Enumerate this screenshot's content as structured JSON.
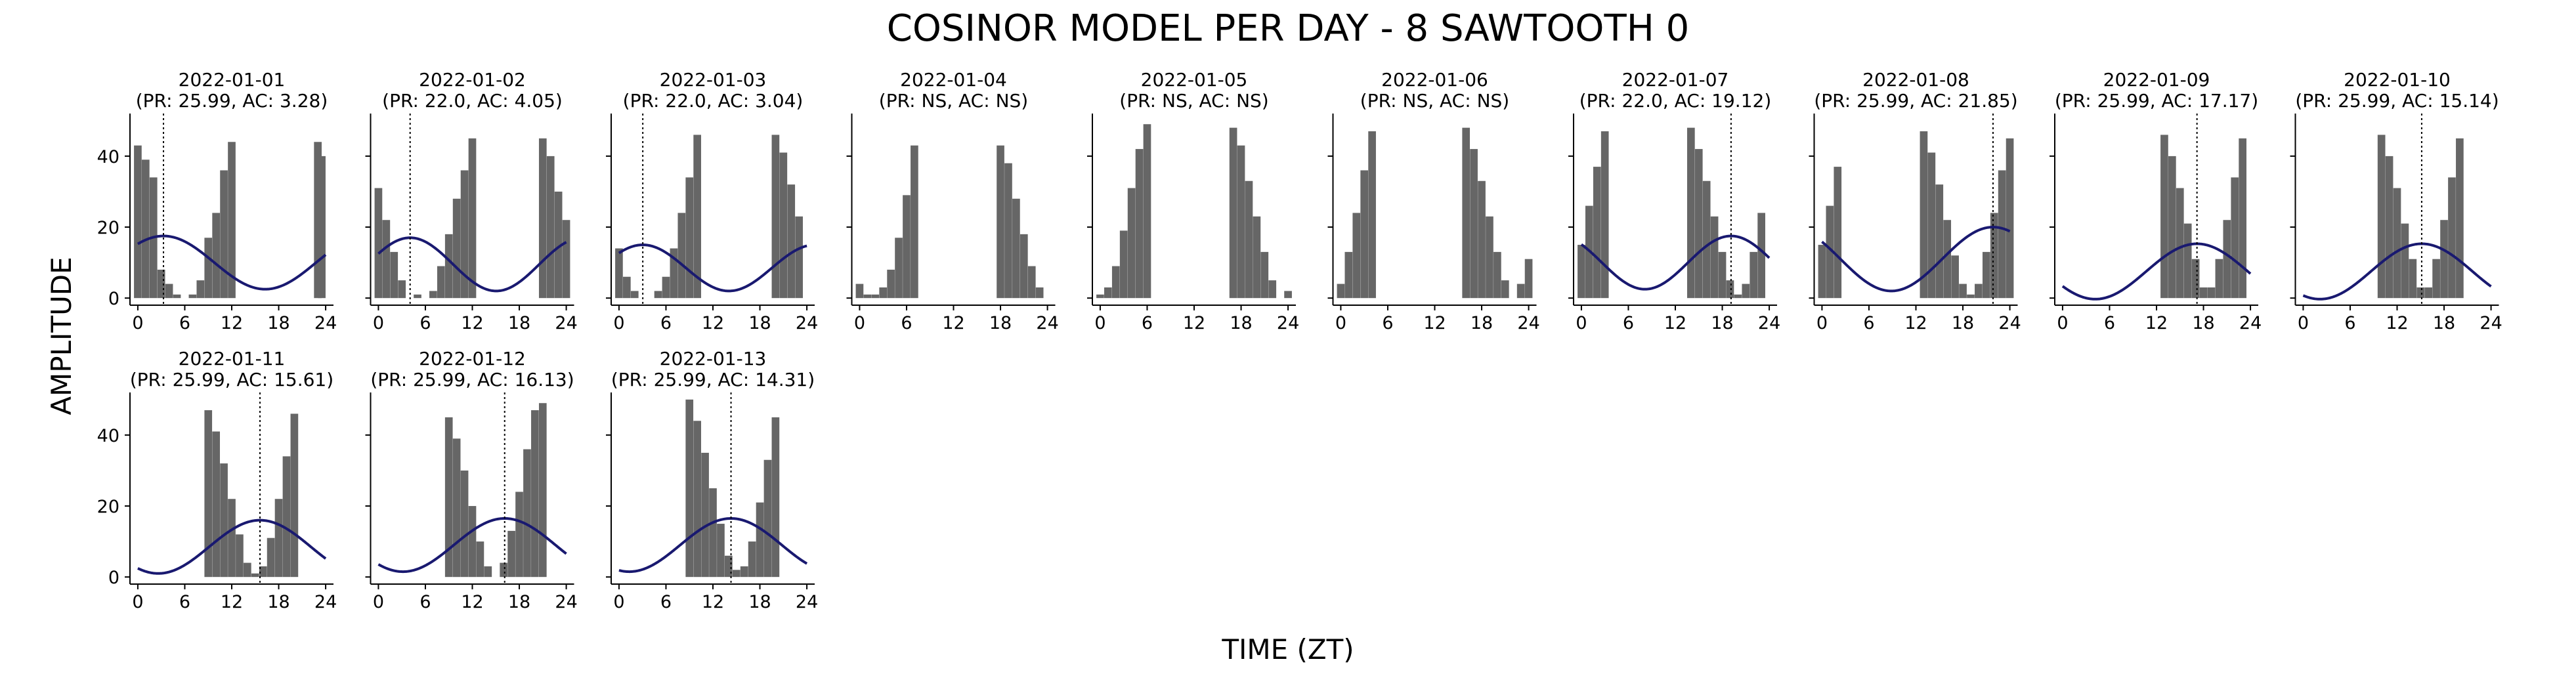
{
  "figure": {
    "title": "COSINOR MODEL PER DAY - 8 SAWTOOTH 0",
    "xlabel": "TIME (ZT)",
    "ylabel": "AMPLITUDE",
    "colors": {
      "bar": "#666666",
      "curve": "#191970",
      "axis": "#000000",
      "acrophase_line": "#000000"
    }
  },
  "chart_data": [
    {
      "type": "bar",
      "date": "2022-01-01",
      "subtitle": "(PR: 25.99, AC: 3.28)",
      "xlim": [
        -1,
        25
      ],
      "ylim": [
        -2,
        52
      ],
      "xticks": [
        0,
        6,
        12,
        18,
        24
      ],
      "yticks": [
        0,
        20,
        40
      ],
      "bins": [
        {
          "x": 0,
          "y": 43
        },
        {
          "x": 1,
          "y": 39
        },
        {
          "x": 2,
          "y": 34
        },
        {
          "x": 3,
          "y": 8
        },
        {
          "x": 4,
          "y": 4
        },
        {
          "x": 5,
          "y": 1
        },
        {
          "x": 7,
          "y": 1
        },
        {
          "x": 8,
          "y": 5
        },
        {
          "x": 9,
          "y": 17
        },
        {
          "x": 10,
          "y": 24
        },
        {
          "x": 11,
          "y": 36
        },
        {
          "x": 12,
          "y": 44
        },
        {
          "x": 23,
          "y": 44
        },
        {
          "x": 23.5,
          "y": 40
        }
      ],
      "cosinor": {
        "mesor": 10.0,
        "amplitude": 7.5,
        "acrophase": 3.28,
        "period": 25.99
      },
      "acrophase_line": 3.28
    },
    {
      "type": "bar",
      "date": "2022-01-02",
      "subtitle": "(PR: 22.0, AC: 4.05)",
      "xlim": [
        -1,
        25
      ],
      "ylim": [
        -2,
        52
      ],
      "xticks": [
        0,
        6,
        12,
        18,
        24
      ],
      "yticks": [
        0,
        20,
        40
      ],
      "bins": [
        {
          "x": 0,
          "y": 31
        },
        {
          "x": 1,
          "y": 22
        },
        {
          "x": 2,
          "y": 13
        },
        {
          "x": 3,
          "y": 5
        },
        {
          "x": 5,
          "y": 1
        },
        {
          "x": 7,
          "y": 2
        },
        {
          "x": 8,
          "y": 9
        },
        {
          "x": 9,
          "y": 18
        },
        {
          "x": 10,
          "y": 28
        },
        {
          "x": 11,
          "y": 36
        },
        {
          "x": 12,
          "y": 45
        },
        {
          "x": 21,
          "y": 45
        },
        {
          "x": 22,
          "y": 40
        },
        {
          "x": 23,
          "y": 30
        },
        {
          "x": 24,
          "y": 22
        }
      ],
      "cosinor": {
        "mesor": 9.5,
        "amplitude": 7.5,
        "acrophase": 4.05,
        "period": 22.0
      },
      "acrophase_line": 4.05
    },
    {
      "type": "bar",
      "date": "2022-01-03",
      "subtitle": "(PR: 22.0, AC: 3.04)",
      "xlim": [
        -1,
        25
      ],
      "ylim": [
        -2,
        52
      ],
      "xticks": [
        0,
        6,
        12,
        18,
        24
      ],
      "yticks": [
        0,
        20,
        40
      ],
      "bins": [
        {
          "x": 0,
          "y": 14
        },
        {
          "x": 1,
          "y": 6
        },
        {
          "x": 2,
          "y": 2
        },
        {
          "x": 5,
          "y": 2
        },
        {
          "x": 6,
          "y": 6
        },
        {
          "x": 7,
          "y": 14
        },
        {
          "x": 8,
          "y": 24
        },
        {
          "x": 9,
          "y": 34
        },
        {
          "x": 10,
          "y": 46
        },
        {
          "x": 20,
          "y": 46
        },
        {
          "x": 21,
          "y": 41
        },
        {
          "x": 22,
          "y": 32
        },
        {
          "x": 23,
          "y": 23
        }
      ],
      "cosinor": {
        "mesor": 8.5,
        "amplitude": 6.5,
        "acrophase": 3.04,
        "period": 22.0
      },
      "acrophase_line": 3.04
    },
    {
      "type": "bar",
      "date": "2022-01-04",
      "subtitle": "(PR: NS, AC: NS)",
      "xlim": [
        -1,
        25
      ],
      "ylim": [
        -2,
        52
      ],
      "xticks": [
        0,
        6,
        12,
        18,
        24
      ],
      "yticks": [
        0,
        20,
        40
      ],
      "bins": [
        {
          "x": 0,
          "y": 4
        },
        {
          "x": 1,
          "y": 1
        },
        {
          "x": 2,
          "y": 1
        },
        {
          "x": 3,
          "y": 3
        },
        {
          "x": 4,
          "y": 8
        },
        {
          "x": 5,
          "y": 17
        },
        {
          "x": 6,
          "y": 29
        },
        {
          "x": 7,
          "y": 43
        },
        {
          "x": 18,
          "y": 43
        },
        {
          "x": 19,
          "y": 38
        },
        {
          "x": 20,
          "y": 28
        },
        {
          "x": 21,
          "y": 18
        },
        {
          "x": 22,
          "y": 9
        },
        {
          "x": 23,
          "y": 3
        }
      ],
      "cosinor": null,
      "acrophase_line": null
    },
    {
      "type": "bar",
      "date": "2022-01-05",
      "subtitle": "(PR: NS, AC: NS)",
      "xlim": [
        -1,
        25
      ],
      "ylim": [
        -2,
        52
      ],
      "xticks": [
        0,
        6,
        12,
        18,
        24
      ],
      "yticks": [
        0,
        20,
        40
      ],
      "bins": [
        {
          "x": 0,
          "y": 1
        },
        {
          "x": 1,
          "y": 3
        },
        {
          "x": 2,
          "y": 9
        },
        {
          "x": 3,
          "y": 19
        },
        {
          "x": 4,
          "y": 31
        },
        {
          "x": 5,
          "y": 42
        },
        {
          "x": 6,
          "y": 49
        },
        {
          "x": 17,
          "y": 48
        },
        {
          "x": 18,
          "y": 43
        },
        {
          "x": 19,
          "y": 33
        },
        {
          "x": 20,
          "y": 23
        },
        {
          "x": 21,
          "y": 13
        },
        {
          "x": 22,
          "y": 5
        },
        {
          "x": 24,
          "y": 2
        }
      ],
      "cosinor": null,
      "acrophase_line": null
    },
    {
      "type": "bar",
      "date": "2022-01-06",
      "subtitle": "(PR: NS, AC: NS)",
      "xlim": [
        -1,
        25
      ],
      "ylim": [
        -2,
        52
      ],
      "xticks": [
        0,
        6,
        12,
        18,
        24
      ],
      "yticks": [
        0,
        20,
        40
      ],
      "bins": [
        {
          "x": 0,
          "y": 4
        },
        {
          "x": 1,
          "y": 13
        },
        {
          "x": 2,
          "y": 24
        },
        {
          "x": 3,
          "y": 36
        },
        {
          "x": 4,
          "y": 47
        },
        {
          "x": 16,
          "y": 48
        },
        {
          "x": 17,
          "y": 42
        },
        {
          "x": 18,
          "y": 33
        },
        {
          "x": 19,
          "y": 23
        },
        {
          "x": 20,
          "y": 13
        },
        {
          "x": 21,
          "y": 5
        },
        {
          "x": 23,
          "y": 4
        },
        {
          "x": 24,
          "y": 11
        }
      ],
      "cosinor": null,
      "acrophase_line": null
    },
    {
      "type": "bar",
      "date": "2022-01-07",
      "subtitle": "(PR: 22.0, AC: 19.12)",
      "xlim": [
        -1,
        25
      ],
      "ylim": [
        -2,
        52
      ],
      "xticks": [
        0,
        6,
        12,
        18,
        24
      ],
      "yticks": [
        0,
        20,
        40
      ],
      "bins": [
        {
          "x": 0,
          "y": 15
        },
        {
          "x": 1,
          "y": 26
        },
        {
          "x": 2,
          "y": 37
        },
        {
          "x": 3,
          "y": 47
        },
        {
          "x": 14,
          "y": 48
        },
        {
          "x": 15,
          "y": 42
        },
        {
          "x": 16,
          "y": 33
        },
        {
          "x": 17,
          "y": 23
        },
        {
          "x": 18,
          "y": 13
        },
        {
          "x": 19,
          "y": 5
        },
        {
          "x": 20,
          "y": 1
        },
        {
          "x": 21,
          "y": 4
        },
        {
          "x": 22,
          "y": 13
        },
        {
          "x": 23,
          "y": 24
        }
      ],
      "cosinor": {
        "mesor": 10.0,
        "amplitude": 7.5,
        "acrophase": 19.12,
        "period": 22.0
      },
      "acrophase_line": 19.12
    },
    {
      "type": "bar",
      "date": "2022-01-08",
      "subtitle": "(PR: 25.99, AC: 21.85)",
      "xlim": [
        -1,
        25
      ],
      "ylim": [
        -2,
        52
      ],
      "xticks": [
        0,
        6,
        12,
        18,
        24
      ],
      "yticks": [
        0,
        20,
        40
      ],
      "bins": [
        {
          "x": 0,
          "y": 15
        },
        {
          "x": 1,
          "y": 26
        },
        {
          "x": 2,
          "y": 37
        },
        {
          "x": 13,
          "y": 47
        },
        {
          "x": 14,
          "y": 41
        },
        {
          "x": 15,
          "y": 32
        },
        {
          "x": 16,
          "y": 22
        },
        {
          "x": 17,
          "y": 12
        },
        {
          "x": 18,
          "y": 4
        },
        {
          "x": 19,
          "y": 1
        },
        {
          "x": 20,
          "y": 4
        },
        {
          "x": 21,
          "y": 13
        },
        {
          "x": 22,
          "y": 24
        },
        {
          "x": 23,
          "y": 36
        },
        {
          "x": 24,
          "y": 45
        }
      ],
      "cosinor": {
        "mesor": 11.0,
        "amplitude": 9.0,
        "acrophase": 21.85,
        "period": 25.99
      },
      "acrophase_line": 21.85
    },
    {
      "type": "bar",
      "date": "2022-01-09",
      "subtitle": "(PR: 25.99, AC: 17.17)",
      "xlim": [
        -1,
        25
      ],
      "ylim": [
        -2,
        52
      ],
      "xticks": [
        0,
        6,
        12,
        18,
        24
      ],
      "yticks": [
        0,
        20,
        40
      ],
      "bins": [
        {
          "x": 13,
          "y": 46
        },
        {
          "x": 14,
          "y": 40
        },
        {
          "x": 15,
          "y": 31
        },
        {
          "x": 16,
          "y": 21
        },
        {
          "x": 17,
          "y": 11
        },
        {
          "x": 18,
          "y": 3
        },
        {
          "x": 19,
          "y": 3
        },
        {
          "x": 20,
          "y": 11
        },
        {
          "x": 21,
          "y": 22
        },
        {
          "x": 22,
          "y": 34
        },
        {
          "x": 23,
          "y": 45
        }
      ],
      "cosinor": {
        "mesor": 7.5,
        "amplitude": 7.8,
        "acrophase": 17.17,
        "period": 25.99
      },
      "acrophase_line": 17.17
    },
    {
      "type": "bar",
      "date": "2022-01-10",
      "subtitle": "(PR: 25.99, AC: 15.14)",
      "xlim": [
        -1,
        25
      ],
      "ylim": [
        -2,
        52
      ],
      "xticks": [
        0,
        6,
        12,
        18,
        24
      ],
      "yticks": [
        0,
        20,
        40
      ],
      "bins": [
        {
          "x": 10,
          "y": 46
        },
        {
          "x": 11,
          "y": 40
        },
        {
          "x": 12,
          "y": 31
        },
        {
          "x": 13,
          "y": 21
        },
        {
          "x": 14,
          "y": 11
        },
        {
          "x": 15,
          "y": 3
        },
        {
          "x": 16,
          "y": 3
        },
        {
          "x": 17,
          "y": 11
        },
        {
          "x": 18,
          "y": 22
        },
        {
          "x": 19,
          "y": 34
        },
        {
          "x": 20,
          "y": 45
        }
      ],
      "cosinor": {
        "mesor": 7.5,
        "amplitude": 7.8,
        "acrophase": 15.14,
        "period": 25.99
      },
      "acrophase_line": 15.14
    },
    {
      "type": "bar",
      "date": "2022-01-11",
      "subtitle": "(PR: 25.99, AC: 15.61)",
      "xlim": [
        -1,
        25
      ],
      "ylim": [
        -2,
        52
      ],
      "xticks": [
        0,
        6,
        12,
        18,
        24
      ],
      "yticks": [
        0,
        20,
        40
      ],
      "bins": [
        {
          "x": 9,
          "y": 47
        },
        {
          "x": 10,
          "y": 41
        },
        {
          "x": 11,
          "y": 32
        },
        {
          "x": 12,
          "y": 22
        },
        {
          "x": 13,
          "y": 12
        },
        {
          "x": 14,
          "y": 4
        },
        {
          "x": 15,
          "y": 1
        },
        {
          "x": 16,
          "y": 3
        },
        {
          "x": 17,
          "y": 11
        },
        {
          "x": 18,
          "y": 22
        },
        {
          "x": 19,
          "y": 34
        },
        {
          "x": 20,
          "y": 46
        }
      ],
      "cosinor": {
        "mesor": 8.5,
        "amplitude": 7.5,
        "acrophase": 15.61,
        "period": 25.99
      },
      "acrophase_line": 15.61
    },
    {
      "type": "bar",
      "date": "2022-01-12",
      "subtitle": "(PR: 25.99, AC: 16.13)",
      "xlim": [
        -1,
        25
      ],
      "ylim": [
        -2,
        52
      ],
      "xticks": [
        0,
        6,
        12,
        18,
        24
      ],
      "yticks": [
        0,
        20,
        40
      ],
      "bins": [
        {
          "x": 9,
          "y": 45
        },
        {
          "x": 10,
          "y": 39
        },
        {
          "x": 11,
          "y": 30
        },
        {
          "x": 12,
          "y": 20
        },
        {
          "x": 13,
          "y": 10
        },
        {
          "x": 14,
          "y": 3
        },
        {
          "x": 16,
          "y": 4
        },
        {
          "x": 17,
          "y": 13
        },
        {
          "x": 18,
          "y": 24
        },
        {
          "x": 19,
          "y": 36
        },
        {
          "x": 20,
          "y": 47
        },
        {
          "x": 21,
          "y": 49
        }
      ],
      "cosinor": {
        "mesor": 9.0,
        "amplitude": 7.5,
        "acrophase": 16.13,
        "period": 25.99
      },
      "acrophase_line": 16.13
    },
    {
      "type": "bar",
      "date": "2022-01-13",
      "subtitle": "(PR: 25.99, AC: 14.31)",
      "xlim": [
        -1,
        25
      ],
      "ylim": [
        -2,
        52
      ],
      "xticks": [
        0,
        6,
        12,
        18,
        24
      ],
      "yticks": [
        0,
        20,
        40
      ],
      "bins": [
        {
          "x": 9,
          "y": 50
        },
        {
          "x": 10,
          "y": 44
        },
        {
          "x": 11,
          "y": 35
        },
        {
          "x": 12,
          "y": 25
        },
        {
          "x": 13,
          "y": 15
        },
        {
          "x": 14,
          "y": 6
        },
        {
          "x": 15,
          "y": 2
        },
        {
          "x": 16,
          "y": 3
        },
        {
          "x": 17,
          "y": 10
        },
        {
          "x": 18,
          "y": 21
        },
        {
          "x": 19,
          "y": 33
        },
        {
          "x": 20,
          "y": 45
        }
      ],
      "cosinor": {
        "mesor": 9.0,
        "amplitude": 7.5,
        "acrophase": 14.31,
        "period": 25.99
      },
      "acrophase_line": 14.31
    }
  ]
}
